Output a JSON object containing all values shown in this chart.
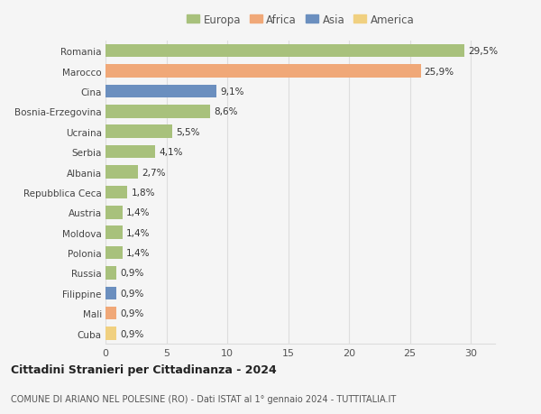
{
  "categories": [
    "Romania",
    "Marocco",
    "Cina",
    "Bosnia-Erzegovina",
    "Ucraina",
    "Serbia",
    "Albania",
    "Repubblica Ceca",
    "Austria",
    "Moldova",
    "Polonia",
    "Russia",
    "Filippine",
    "Mali",
    "Cuba"
  ],
  "values": [
    29.5,
    25.9,
    9.1,
    8.6,
    5.5,
    4.1,
    2.7,
    1.8,
    1.4,
    1.4,
    1.4,
    0.9,
    0.9,
    0.9,
    0.9
  ],
  "labels": [
    "29,5%",
    "25,9%",
    "9,1%",
    "8,6%",
    "5,5%",
    "4,1%",
    "2,7%",
    "1,8%",
    "1,4%",
    "1,4%",
    "1,4%",
    "0,9%",
    "0,9%",
    "0,9%",
    "0,9%"
  ],
  "continents": [
    "Europa",
    "Africa",
    "Asia",
    "Europa",
    "Europa",
    "Europa",
    "Europa",
    "Europa",
    "Europa",
    "Europa",
    "Europa",
    "Europa",
    "Asia",
    "Africa",
    "America"
  ],
  "colors": {
    "Europa": "#a8c17c",
    "Africa": "#f0a878",
    "Asia": "#6b8fbf",
    "America": "#f0d080"
  },
  "legend_order": [
    "Europa",
    "Africa",
    "Asia",
    "America"
  ],
  "title": "Cittadini Stranieri per Cittadinanza - 2024",
  "subtitle": "COMUNE DI ARIANO NEL POLESINE (RO) - Dati ISTAT al 1° gennaio 2024 - TUTTITALIA.IT",
  "xlim": [
    0,
    32
  ],
  "xticks": [
    0,
    5,
    10,
    15,
    20,
    25,
    30
  ],
  "background_color": "#f5f5f5",
  "grid_color": "#dddddd",
  "bar_height": 0.65,
  "label_fontsize": 7.5,
  "ytick_fontsize": 7.5,
  "xtick_fontsize": 8.0
}
